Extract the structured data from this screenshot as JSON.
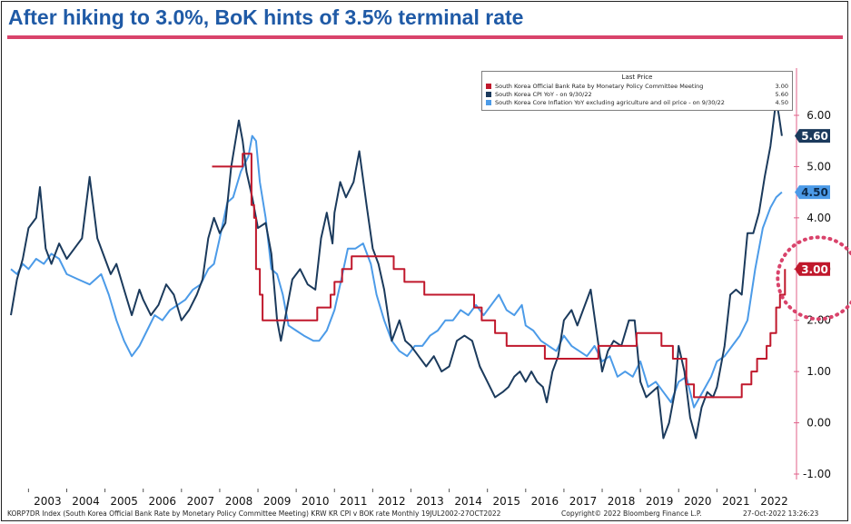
{
  "title": "After hiking to 3.0%, BoK hints of 3.5% terminal rate",
  "footer": {
    "description": "KORP7DR Index (South Korea Official Bank Rate by Monetary Policy Committee Meeting) KRW KR CPI v BOK rate  Monthly 19JUL2002-27OCT2022",
    "copyright": "Copyright© 2022 Bloomberg Finance L.P.",
    "timestamp": "27-Oct-2022 13:26:23"
  },
  "legend": {
    "header": "Last Price",
    "items": [
      {
        "label": "South Korea Official Bank Rate by Monetary Policy Committee Meeting",
        "value": "3.00",
        "color": "#c0182c"
      },
      {
        "label": "South Korea CPI YoY  -  on 9/30/22",
        "value": "5.60",
        "color": "#1b3a5c"
      },
      {
        "label": "South Korea Core Inflation YoY excluding agriculture and oil price  -  on 9/30/22",
        "value": "4.50",
        "color": "#4c9be8"
      }
    ]
  },
  "chart_data": {
    "type": "line",
    "title": "After hiking to 3.0%, BoK hints of 3.5% terminal rate",
    "xlabel": "",
    "ylabel": "",
    "x_range": [
      2002.54,
      2022.82
    ],
    "ylim": [
      -1.0,
      6.5
    ],
    "y_ticks": [
      "6.00",
      "5.00",
      "4.00",
      "3.00",
      "2.00",
      "1.00",
      "0.00",
      "-1.00"
    ],
    "x_tick_labels": [
      "2003",
      "2004",
      "2005",
      "2006",
      "2007",
      "2008",
      "2009",
      "2010",
      "2011",
      "2012",
      "2013",
      "2014",
      "2015",
      "2016",
      "2017",
      "2018",
      "2019",
      "2020",
      "2021",
      "2022"
    ],
    "last_value_labels": [
      {
        "series": "cpi",
        "text": "5.60",
        "value": 5.6,
        "color": "#1b3a5c"
      },
      {
        "series": "core",
        "text": "4.50",
        "value": 4.5,
        "color": "#4c9be8"
      },
      {
        "series": "rate",
        "text": "3.00",
        "value": 3.0,
        "color": "#c0182c"
      }
    ],
    "annotation": {
      "type": "dotted-circle",
      "x": 2022.78,
      "y": 3.0,
      "color": "#d9436b"
    },
    "series": [
      {
        "name": "South Korea Official Bank Rate by Monetary Policy Committee Meeting",
        "key": "rate",
        "color": "#c0182c",
        "step": true,
        "points": [
          [
            2007.8,
            5.0
          ],
          [
            2008.6,
            5.25
          ],
          [
            2008.83,
            4.25
          ],
          [
            2008.9,
            4.0
          ],
          [
            2008.95,
            3.0
          ],
          [
            2009.05,
            2.5
          ],
          [
            2009.12,
            2.0
          ],
          [
            2010.55,
            2.25
          ],
          [
            2010.9,
            2.5
          ],
          [
            2011.0,
            2.75
          ],
          [
            2011.2,
            3.0
          ],
          [
            2011.45,
            3.25
          ],
          [
            2012.55,
            3.0
          ],
          [
            2012.83,
            2.75
          ],
          [
            2013.35,
            2.5
          ],
          [
            2014.65,
            2.25
          ],
          [
            2014.85,
            2.0
          ],
          [
            2015.2,
            1.75
          ],
          [
            2015.5,
            1.5
          ],
          [
            2016.5,
            1.25
          ],
          [
            2017.9,
            1.5
          ],
          [
            2018.9,
            1.75
          ],
          [
            2019.55,
            1.5
          ],
          [
            2019.85,
            1.25
          ],
          [
            2020.2,
            0.75
          ],
          [
            2020.4,
            0.5
          ],
          [
            2021.65,
            0.75
          ],
          [
            2021.9,
            1.0
          ],
          [
            2022.05,
            1.25
          ],
          [
            2022.3,
            1.5
          ],
          [
            2022.4,
            1.75
          ],
          [
            2022.55,
            2.25
          ],
          [
            2022.65,
            2.5
          ],
          [
            2022.78,
            3.0
          ]
        ]
      },
      {
        "name": "South Korea CPI YoY - on 9/30/22",
        "key": "cpi",
        "color": "#1b3a5c",
        "step": false,
        "points": [
          [
            2002.54,
            2.1
          ],
          [
            2002.7,
            2.8
          ],
          [
            2002.85,
            3.2
          ],
          [
            2003.0,
            3.8
          ],
          [
            2003.2,
            4.0
          ],
          [
            2003.3,
            4.6
          ],
          [
            2003.45,
            3.4
          ],
          [
            2003.6,
            3.1
          ],
          [
            2003.8,
            3.5
          ],
          [
            2004.0,
            3.2
          ],
          [
            2004.2,
            3.4
          ],
          [
            2004.4,
            3.6
          ],
          [
            2004.6,
            4.8
          ],
          [
            2004.8,
            3.6
          ],
          [
            2005.0,
            3.2
          ],
          [
            2005.15,
            2.9
          ],
          [
            2005.3,
            3.1
          ],
          [
            2005.5,
            2.6
          ],
          [
            2005.7,
            2.1
          ],
          [
            2005.9,
            2.6
          ],
          [
            2006.0,
            2.4
          ],
          [
            2006.2,
            2.1
          ],
          [
            2006.4,
            2.3
          ],
          [
            2006.6,
            2.7
          ],
          [
            2006.8,
            2.5
          ],
          [
            2007.0,
            2.0
          ],
          [
            2007.2,
            2.2
          ],
          [
            2007.4,
            2.5
          ],
          [
            2007.55,
            2.8
          ],
          [
            2007.7,
            3.6
          ],
          [
            2007.85,
            4.0
          ],
          [
            2008.0,
            3.7
          ],
          [
            2008.15,
            3.9
          ],
          [
            2008.3,
            5.0
          ],
          [
            2008.5,
            5.9
          ],
          [
            2008.6,
            5.5
          ],
          [
            2008.7,
            4.9
          ],
          [
            2008.85,
            4.4
          ],
          [
            2009.0,
            3.8
          ],
          [
            2009.2,
            3.9
          ],
          [
            2009.35,
            3.3
          ],
          [
            2009.5,
            2.0
          ],
          [
            2009.6,
            1.6
          ],
          [
            2009.75,
            2.2
          ],
          [
            2009.9,
            2.8
          ],
          [
            2010.1,
            3.0
          ],
          [
            2010.3,
            2.7
          ],
          [
            2010.5,
            2.6
          ],
          [
            2010.65,
            3.6
          ],
          [
            2010.8,
            4.1
          ],
          [
            2010.95,
            3.5
          ],
          [
            2011.0,
            4.1
          ],
          [
            2011.15,
            4.7
          ],
          [
            2011.3,
            4.4
          ],
          [
            2011.5,
            4.7
          ],
          [
            2011.65,
            5.3
          ],
          [
            2011.85,
            4.2
          ],
          [
            2012.0,
            3.4
          ],
          [
            2012.15,
            3.1
          ],
          [
            2012.3,
            2.6
          ],
          [
            2012.5,
            1.6
          ],
          [
            2012.7,
            2.0
          ],
          [
            2012.85,
            1.6
          ],
          [
            2013.0,
            1.5
          ],
          [
            2013.2,
            1.3
          ],
          [
            2013.4,
            1.1
          ],
          [
            2013.6,
            1.3
          ],
          [
            2013.8,
            1.0
          ],
          [
            2014.0,
            1.1
          ],
          [
            2014.2,
            1.6
          ],
          [
            2014.4,
            1.7
          ],
          [
            2014.6,
            1.6
          ],
          [
            2014.8,
            1.1
          ],
          [
            2015.0,
            0.8
          ],
          [
            2015.2,
            0.5
          ],
          [
            2015.4,
            0.6
          ],
          [
            2015.55,
            0.7
          ],
          [
            2015.7,
            0.9
          ],
          [
            2015.85,
            1.0
          ],
          [
            2016.0,
            0.8
          ],
          [
            2016.15,
            1.0
          ],
          [
            2016.3,
            0.8
          ],
          [
            2016.45,
            0.7
          ],
          [
            2016.55,
            0.4
          ],
          [
            2016.7,
            1.0
          ],
          [
            2016.85,
            1.3
          ],
          [
            2017.0,
            2.0
          ],
          [
            2017.2,
            2.2
          ],
          [
            2017.35,
            1.9
          ],
          [
            2017.5,
            2.2
          ],
          [
            2017.7,
            2.6
          ],
          [
            2017.85,
            1.8
          ],
          [
            2018.0,
            1.0
          ],
          [
            2018.15,
            1.4
          ],
          [
            2018.3,
            1.6
          ],
          [
            2018.5,
            1.5
          ],
          [
            2018.7,
            2.0
          ],
          [
            2018.85,
            2.0
          ],
          [
            2019.0,
            0.8
          ],
          [
            2019.15,
            0.5
          ],
          [
            2019.3,
            0.6
          ],
          [
            2019.45,
            0.7
          ],
          [
            2019.6,
            -0.3
          ],
          [
            2019.75,
            0.0
          ],
          [
            2019.9,
            0.6
          ],
          [
            2020.0,
            1.5
          ],
          [
            2020.15,
            1.0
          ],
          [
            2020.3,
            0.1
          ],
          [
            2020.45,
            -0.3
          ],
          [
            2020.6,
            0.3
          ],
          [
            2020.75,
            0.6
          ],
          [
            2020.9,
            0.5
          ],
          [
            2021.0,
            0.7
          ],
          [
            2021.2,
            1.5
          ],
          [
            2021.35,
            2.5
          ],
          [
            2021.5,
            2.6
          ],
          [
            2021.65,
            2.5
          ],
          [
            2021.8,
            3.7
          ],
          [
            2021.95,
            3.7
          ],
          [
            2022.1,
            4.1
          ],
          [
            2022.25,
            4.8
          ],
          [
            2022.4,
            5.4
          ],
          [
            2022.55,
            6.3
          ],
          [
            2022.62,
            6.0
          ],
          [
            2022.7,
            5.6
          ]
        ]
      },
      {
        "name": "South Korea Core Inflation YoY excluding agriculture and oil price - on 9/30/22",
        "key": "core",
        "color": "#4c9be8",
        "step": false,
        "points": [
          [
            2002.54,
            3.0
          ],
          [
            2002.7,
            2.9
          ],
          [
            2002.85,
            3.1
          ],
          [
            2003.0,
            3.0
          ],
          [
            2003.2,
            3.2
          ],
          [
            2003.4,
            3.1
          ],
          [
            2003.6,
            3.3
          ],
          [
            2003.8,
            3.2
          ],
          [
            2004.0,
            2.9
          ],
          [
            2004.3,
            2.8
          ],
          [
            2004.6,
            2.7
          ],
          [
            2004.9,
            2.9
          ],
          [
            2005.1,
            2.5
          ],
          [
            2005.3,
            2.0
          ],
          [
            2005.5,
            1.6
          ],
          [
            2005.7,
            1.3
          ],
          [
            2005.9,
            1.5
          ],
          [
            2006.1,
            1.8
          ],
          [
            2006.3,
            2.1
          ],
          [
            2006.5,
            2.0
          ],
          [
            2006.7,
            2.2
          ],
          [
            2006.9,
            2.3
          ],
          [
            2007.1,
            2.4
          ],
          [
            2007.3,
            2.6
          ],
          [
            2007.5,
            2.7
          ],
          [
            2007.7,
            3.0
          ],
          [
            2007.85,
            3.1
          ],
          [
            2008.0,
            3.6
          ],
          [
            2008.2,
            4.3
          ],
          [
            2008.35,
            4.4
          ],
          [
            2008.55,
            4.9
          ],
          [
            2008.75,
            5.2
          ],
          [
            2008.85,
            5.6
          ],
          [
            2008.95,
            5.5
          ],
          [
            2009.05,
            4.7
          ],
          [
            2009.2,
            4.0
          ],
          [
            2009.35,
            3.0
          ],
          [
            2009.5,
            2.9
          ],
          [
            2009.65,
            2.5
          ],
          [
            2009.8,
            1.9
          ],
          [
            2010.0,
            1.8
          ],
          [
            2010.2,
            1.7
          ],
          [
            2010.45,
            1.6
          ],
          [
            2010.6,
            1.6
          ],
          [
            2010.8,
            1.8
          ],
          [
            2011.0,
            2.2
          ],
          [
            2011.15,
            2.7
          ],
          [
            2011.35,
            3.4
          ],
          [
            2011.55,
            3.4
          ],
          [
            2011.75,
            3.5
          ],
          [
            2011.95,
            3.1
          ],
          [
            2012.1,
            2.5
          ],
          [
            2012.3,
            2.0
          ],
          [
            2012.5,
            1.6
          ],
          [
            2012.7,
            1.4
          ],
          [
            2012.9,
            1.3
          ],
          [
            2013.1,
            1.5
          ],
          [
            2013.3,
            1.5
          ],
          [
            2013.5,
            1.7
          ],
          [
            2013.7,
            1.8
          ],
          [
            2013.9,
            2.0
          ],
          [
            2014.1,
            2.0
          ],
          [
            2014.3,
            2.2
          ],
          [
            2014.5,
            2.1
          ],
          [
            2014.7,
            2.3
          ],
          [
            2014.9,
            2.1
          ],
          [
            2015.1,
            2.3
          ],
          [
            2015.3,
            2.5
          ],
          [
            2015.5,
            2.2
          ],
          [
            2015.7,
            2.1
          ],
          [
            2015.9,
            2.3
          ],
          [
            2016.0,
            1.9
          ],
          [
            2016.2,
            1.8
          ],
          [
            2016.4,
            1.6
          ],
          [
            2016.6,
            1.5
          ],
          [
            2016.8,
            1.4
          ],
          [
            2017.0,
            1.7
          ],
          [
            2017.2,
            1.5
          ],
          [
            2017.4,
            1.4
          ],
          [
            2017.6,
            1.3
          ],
          [
            2017.8,
            1.5
          ],
          [
            2018.0,
            1.2
          ],
          [
            2018.2,
            1.3
          ],
          [
            2018.4,
            0.9
          ],
          [
            2018.6,
            1.0
          ],
          [
            2018.8,
            0.9
          ],
          [
            2019.0,
            1.2
          ],
          [
            2019.2,
            0.7
          ],
          [
            2019.4,
            0.8
          ],
          [
            2019.6,
            0.6
          ],
          [
            2019.8,
            0.4
          ],
          [
            2020.0,
            0.8
          ],
          [
            2020.2,
            0.9
          ],
          [
            2020.4,
            0.3
          ],
          [
            2020.55,
            0.5
          ],
          [
            2020.7,
            0.7
          ],
          [
            2020.85,
            0.9
          ],
          [
            2021.0,
            1.2
          ],
          [
            2021.2,
            1.3
          ],
          [
            2021.4,
            1.5
          ],
          [
            2021.6,
            1.7
          ],
          [
            2021.8,
            2.0
          ],
          [
            2022.0,
            3.0
          ],
          [
            2022.2,
            3.8
          ],
          [
            2022.4,
            4.2
          ],
          [
            2022.55,
            4.4
          ],
          [
            2022.7,
            4.5
          ]
        ]
      }
    ]
  }
}
